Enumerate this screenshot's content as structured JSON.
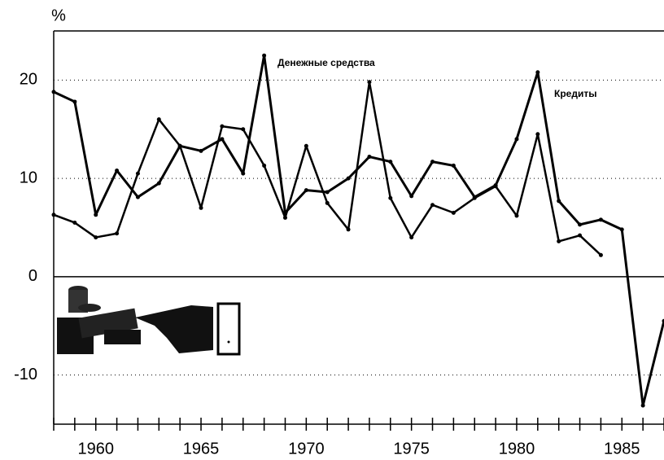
{
  "chart_data": {
    "type": "line",
    "y_label": "%",
    "x": [
      1958,
      1959,
      1960,
      1961,
      1962,
      1963,
      1964,
      1965,
      1966,
      1967,
      1968,
      1969,
      1970,
      1971,
      1972,
      1973,
      1974,
      1975,
      1976,
      1977,
      1978,
      1979,
      1980,
      1981,
      1982,
      1983,
      1984,
      1985,
      1986,
      1987
    ],
    "series": [
      {
        "name": "Денежные средства",
        "color": "#000000",
        "values": [
          18.8,
          17.8,
          6.3,
          10.8,
          8.1,
          9.5,
          13.3,
          12.8,
          14,
          10.5,
          22.5,
          6.5,
          8.8,
          8.6,
          10,
          12.2,
          11.7,
          8.2,
          11.7,
          11.3,
          8.1,
          9.3,
          14,
          20.8,
          7.7,
          5.3,
          5.8,
          4.8,
          -13.1,
          -4.5
        ]
      },
      {
        "name": "Кредиты",
        "color": "#000000",
        "values": [
          6.3,
          5.5,
          4,
          4.4,
          10.5,
          16,
          13.3,
          7,
          15.3,
          15,
          11.3,
          6,
          13.3,
          7.5,
          4.8,
          19.8,
          8,
          4,
          7.3,
          6.5,
          8,
          9.2,
          6.2,
          14.5,
          3.6,
          4.2,
          2.2,
          null,
          null,
          null
        ]
      }
    ],
    "xlim": [
      1958,
      1987
    ],
    "xticks": [
      1960,
      1965,
      1970,
      1975,
      1980,
      1985
    ],
    "xminor_ticks": [
      1958,
      1959,
      1960,
      1961,
      1962,
      1963,
      1964,
      1965,
      1966,
      1967,
      1968,
      1969,
      1970,
      1971,
      1972,
      1973,
      1974,
      1975,
      1976,
      1977,
      1978,
      1979,
      1980,
      1981,
      1982,
      1983,
      1984,
      1985,
      1986,
      1987
    ],
    "ylim": [
      -15,
      25
    ],
    "yticks": [
      -10,
      0,
      10,
      20
    ],
    "grid": true
  }
}
